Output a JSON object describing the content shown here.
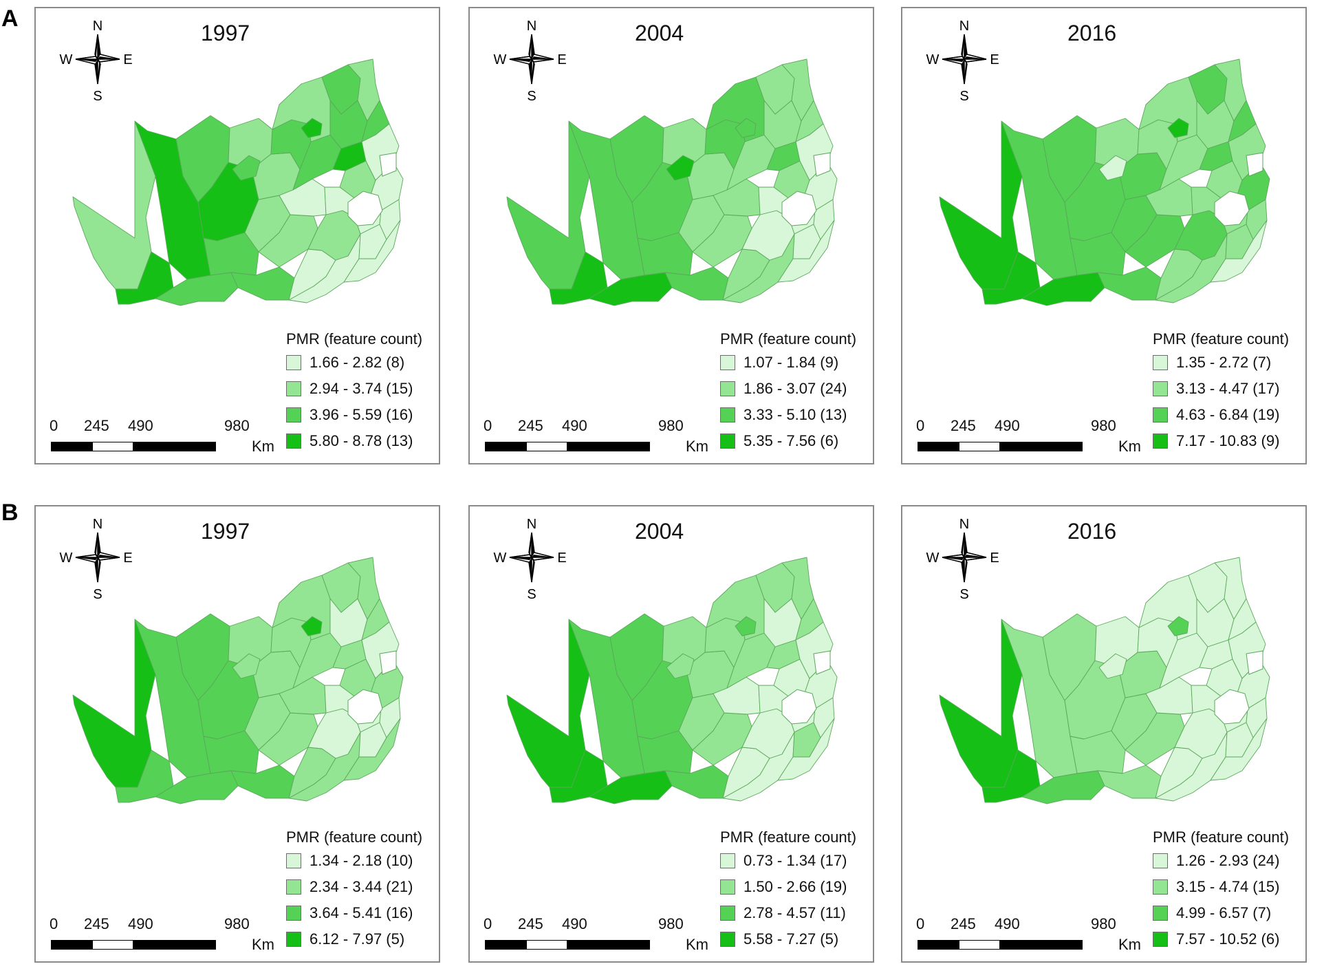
{
  "rows": [
    {
      "label": "A",
      "panels": [
        {
          "year": "1997",
          "legend": {
            "title": "PMR (feature count)",
            "classes": [
              {
                "label": "1.66 - 2.82 (8)",
                "color": "#d8f6d8"
              },
              {
                "label": "2.94 - 3.74 (15)",
                "color": "#93e493"
              },
              {
                "label": "3.96 - 5.59 (16)",
                "color": "#55d155"
              },
              {
                "label": "5.80 - 8.78 (13)",
                "color": "#16bf16"
              }
            ]
          }
        },
        {
          "year": "2004",
          "legend": {
            "title": "PMR (feature count)",
            "classes": [
              {
                "label": "1.07 - 1.84 (9)",
                "color": "#d8f6d8"
              },
              {
                "label": "1.86 - 3.07 (24)",
                "color": "#93e493"
              },
              {
                "label": "3.33 - 5.10 (13)",
                "color": "#55d155"
              },
              {
                "label": "5.35 - 7.56 (6)",
                "color": "#16bf16"
              }
            ]
          }
        },
        {
          "year": "2016",
          "legend": {
            "title": "PMR (feature count)",
            "classes": [
              {
                "label": "1.35 - 2.72 (7)",
                "color": "#d8f6d8"
              },
              {
                "label": "3.13 - 4.47 (17)",
                "color": "#93e493"
              },
              {
                "label": "4.63 - 6.84 (19)",
                "color": "#55d155"
              },
              {
                "label": "7.17 - 10.83 (9)",
                "color": "#16bf16"
              }
            ]
          }
        }
      ]
    },
    {
      "label": "B",
      "panels": [
        {
          "year": "1997",
          "legend": {
            "title": "PMR (feature count)",
            "classes": [
              {
                "label": "1.34 - 2.18 (10)",
                "color": "#d8f6d8"
              },
              {
                "label": "2.34 - 3.44 (21)",
                "color": "#93e493"
              },
              {
                "label": "3.64 - 5.41 (16)",
                "color": "#55d155"
              },
              {
                "label": "6.12 - 7.97 (5)",
                "color": "#16bf16"
              }
            ]
          }
        },
        {
          "year": "2004",
          "legend": {
            "title": "PMR (feature count)",
            "classes": [
              {
                "label": "0.73 - 1.34 (17)",
                "color": "#d8f6d8"
              },
              {
                "label": "1.50 - 2.66 (19)",
                "color": "#93e493"
              },
              {
                "label": "2.78 - 4.57 (11)",
                "color": "#55d155"
              },
              {
                "label": "5.58 - 7.27 (5)",
                "color": "#16bf16"
              }
            ]
          }
        },
        {
          "year": "2016",
          "legend": {
            "title": "PMR (feature count)",
            "classes": [
              {
                "label": "1.26 - 2.93 (24)",
                "color": "#d8f6d8"
              },
              {
                "label": "3.15 - 4.74 (15)",
                "color": "#93e493"
              },
              {
                "label": "4.99 - 6.57 (7)",
                "color": "#55d155"
              },
              {
                "label": "7.57 - 10.52 (6)",
                "color": "#16bf16"
              }
            ]
          }
        }
      ]
    }
  ],
  "compass": {
    "n": "N",
    "s": "S",
    "e": "E",
    "w": "W"
  },
  "scale": {
    "ticks": [
      "0",
      "245",
      "490",
      "980"
    ],
    "unit": "Km"
  }
}
